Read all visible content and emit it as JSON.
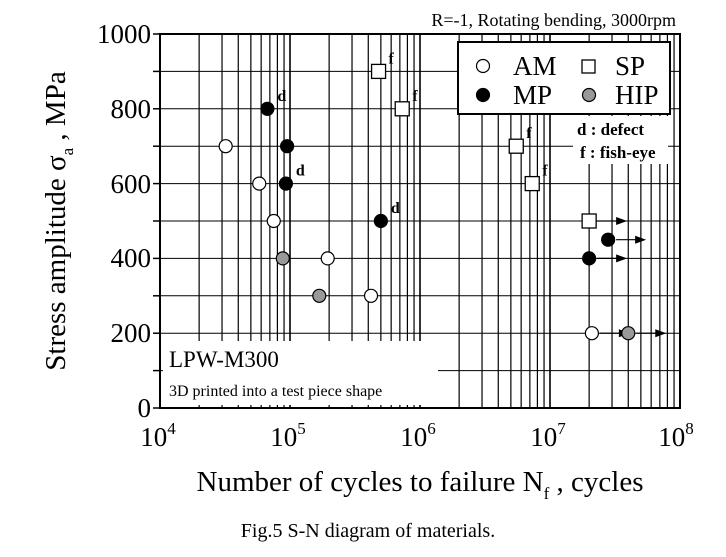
{
  "chart_data": {
    "type": "scatter",
    "xscale": "log",
    "xlim": [
      10000,
      100000000
    ],
    "ylim": [
      0,
      1000
    ],
    "x_ticks": [
      {
        "base": "10",
        "exp": "4",
        "value": 10000
      },
      {
        "base": "10",
        "exp": "5",
        "value": 100000
      },
      {
        "base": "10",
        "exp": "6",
        "value": 1000000
      },
      {
        "base": "10",
        "exp": "7",
        "value": 10000000
      },
      {
        "base": "10",
        "exp": "8",
        "value": 100000000
      }
    ],
    "y_ticks": [
      "0",
      "200",
      "400",
      "600",
      "800",
      "1000"
    ],
    "grid": true,
    "xlabel": {
      "main": "Number of cycles to failure N",
      "sub": "f",
      "tail": " , cycles"
    },
    "ylabel": {
      "main": "Stress amplitude σ",
      "sub": "a",
      "tail": " , MPa"
    },
    "condition": "R=-1, Rotating bending, 3000rpm",
    "material": "LPW-M300",
    "material_note": "3D printed into a test piece shape",
    "caption": "Fig.5 S-N diagram of materials.",
    "legend_position": "top-right",
    "legend": [
      {
        "name": "AM",
        "marker": "circle-open"
      },
      {
        "name": "SP",
        "marker": "square-open"
      },
      {
        "name": "MP",
        "marker": "circle-black"
      },
      {
        "name": "HIP",
        "marker": "circle-gray"
      }
    ],
    "key": [
      "d : defect",
      "f : fish-eye"
    ],
    "series": [
      {
        "name": "AM",
        "marker": "circle-open",
        "points": [
          {
            "x": 32000,
            "y": 700
          },
          {
            "x": 58000,
            "y": 600
          },
          {
            "x": 75000,
            "y": 500
          },
          {
            "x": 195000,
            "y": 400
          },
          {
            "x": 420000,
            "y": 300
          },
          {
            "x": 21000000,
            "y": 200,
            "runout": true
          }
        ]
      },
      {
        "name": "MP",
        "marker": "circle-black",
        "points": [
          {
            "x": 67000,
            "y": 800,
            "label": "d"
          },
          {
            "x": 95000,
            "y": 700
          },
          {
            "x": 93000,
            "y": 600,
            "label": "d"
          },
          {
            "x": 500000,
            "y": 500,
            "label": "d"
          },
          {
            "x": 20000000,
            "y": 400,
            "runout": true
          },
          {
            "x": 28000000,
            "y": 450,
            "runout": true
          }
        ]
      },
      {
        "name": "SP",
        "marker": "square-open",
        "points": [
          {
            "x": 480000,
            "y": 900,
            "label": "f"
          },
          {
            "x": 730000,
            "y": 800,
            "label": "f"
          },
          {
            "x": 5500000,
            "y": 700,
            "label": "f"
          },
          {
            "x": 7300000,
            "y": 600,
            "label": "f"
          },
          {
            "x": 20000000,
            "y": 500,
            "runout": true
          }
        ]
      },
      {
        "name": "HIP",
        "marker": "circle-gray",
        "points": [
          {
            "x": 88000,
            "y": 400
          },
          {
            "x": 168000,
            "y": 300
          },
          {
            "x": 40000000,
            "y": 200,
            "runout": true
          }
        ]
      }
    ]
  }
}
